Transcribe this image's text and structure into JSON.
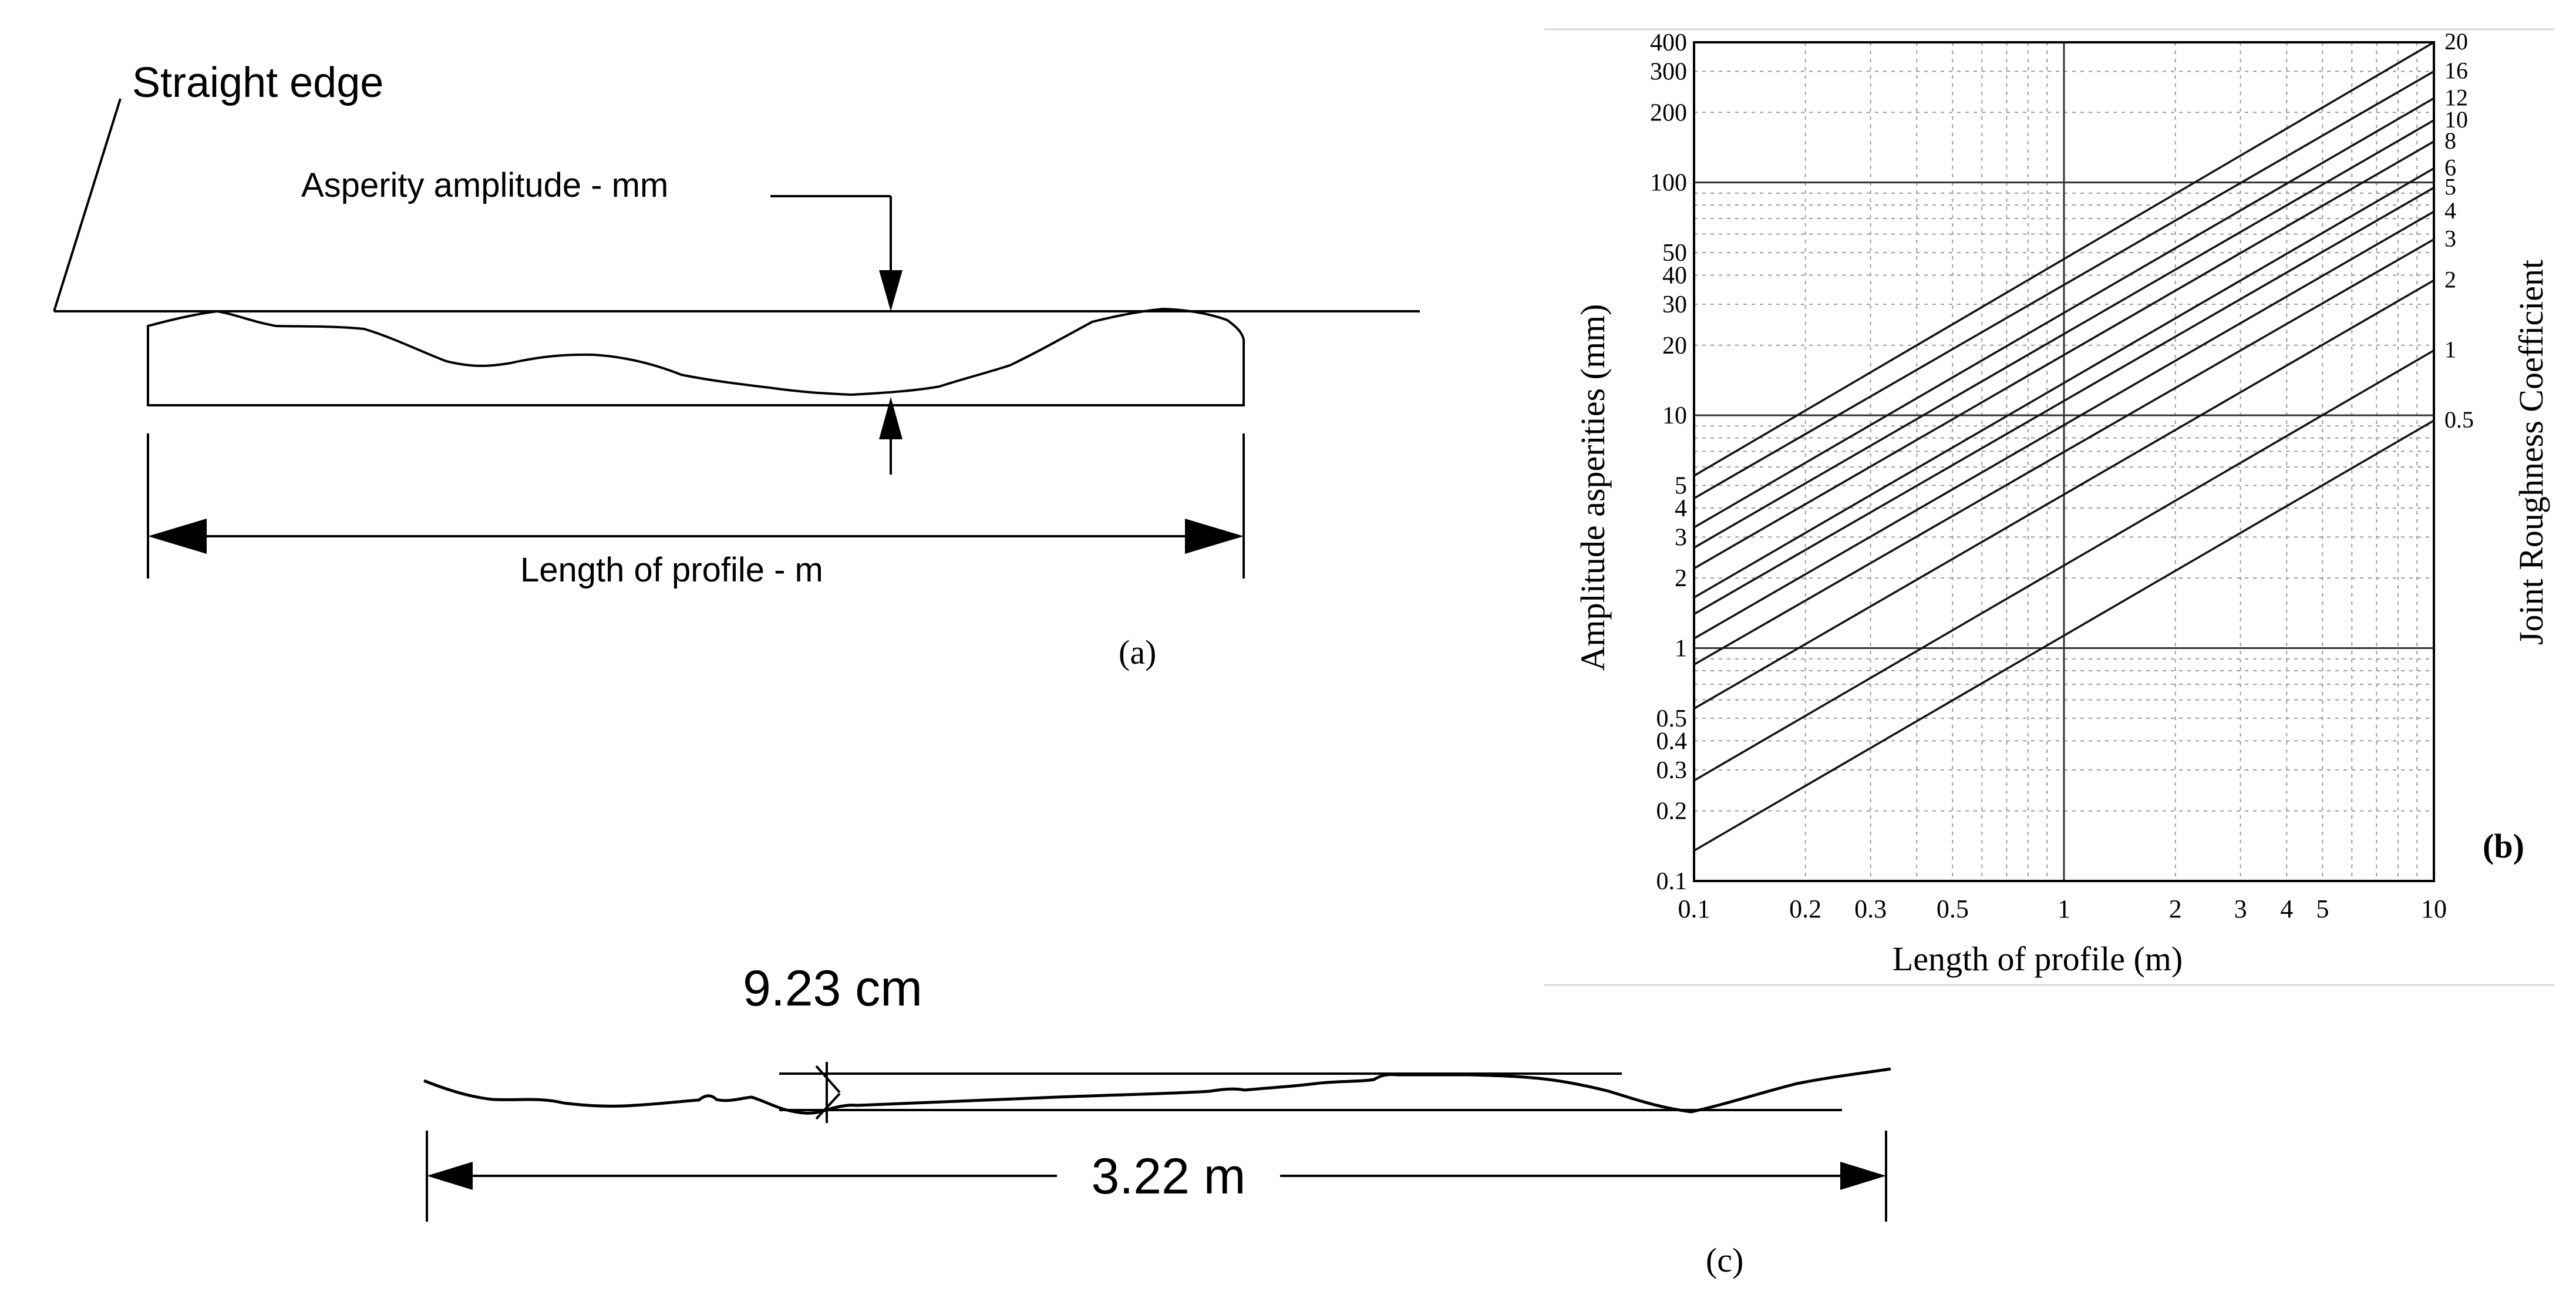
{
  "panel_a": {
    "straight_edge_label": "Straight edge",
    "amplitude_label": "Asperity amplitude - mm",
    "length_label": "Length of profile - m",
    "caption": "(a)"
  },
  "panel_b": {
    "caption": "(b)",
    "chart_data": {
      "type": "line",
      "scale": "log-log",
      "xlabel": "Length of profile (m)",
      "ylabel": "Amplitude asperities (mm)",
      "y2label": "Joint Roughness Coefficient",
      "xlim": [
        0.1,
        10
      ],
      "ylim": [
        0.1,
        400
      ],
      "x_ticks": [
        0.1,
        0.2,
        0.3,
        0.5,
        1,
        2,
        3,
        4,
        5,
        10
      ],
      "x_tick_labels": [
        "0.1",
        "0.2",
        "0.3",
        "0.5",
        "1",
        "2",
        "3",
        "4",
        "5",
        "10"
      ],
      "y_ticks": [
        0.1,
        0.2,
        0.3,
        0.4,
        0.5,
        1,
        2,
        3,
        4,
        5,
        10,
        20,
        30,
        40,
        50,
        100,
        200,
        300,
        400
      ],
      "y_tick_labels": [
        "0.1",
        "0.2",
        "0.3",
        "0.4",
        "0.5",
        "1",
        "2",
        "3",
        "4",
        "5",
        "10",
        "20",
        "30",
        "40",
        "50",
        "100",
        "200",
        "300",
        "400"
      ],
      "grid": true,
      "series": [
        {
          "name": "20",
          "x": [
            0.1,
            10
          ],
          "y": [
            5.5,
            400
          ]
        },
        {
          "name": "16",
          "x": [
            0.1,
            10
          ],
          "y": [
            4.4,
            300
          ]
        },
        {
          "name": "12",
          "x": [
            0.1,
            10
          ],
          "y": [
            3.3,
            230
          ]
        },
        {
          "name": "10",
          "x": [
            0.1,
            10
          ],
          "y": [
            2.7,
            185
          ]
        },
        {
          "name": "8",
          "x": [
            0.1,
            10
          ],
          "y": [
            2.2,
            150
          ]
        },
        {
          "name": "6",
          "x": [
            0.1,
            10
          ],
          "y": [
            1.65,
            115
          ]
        },
        {
          "name": "5",
          "x": [
            0.1,
            10
          ],
          "y": [
            1.4,
            95
          ]
        },
        {
          "name": "4",
          "x": [
            0.1,
            10
          ],
          "y": [
            1.1,
            75
          ]
        },
        {
          "name": "3",
          "x": [
            0.1,
            10
          ],
          "y": [
            0.85,
            57
          ]
        },
        {
          "name": "2",
          "x": [
            0.1,
            10
          ],
          "y": [
            0.55,
            38
          ]
        },
        {
          "name": "1",
          "x": [
            0.1,
            10
          ],
          "y": [
            0.27,
            19
          ]
        },
        {
          "name": "0.5",
          "x": [
            0.1,
            10
          ],
          "y": [
            0.135,
            9.5
          ]
        }
      ]
    }
  },
  "panel_c": {
    "amplitude_value": "9.23 cm",
    "length_value": "3.22 m",
    "caption": "(c)"
  }
}
